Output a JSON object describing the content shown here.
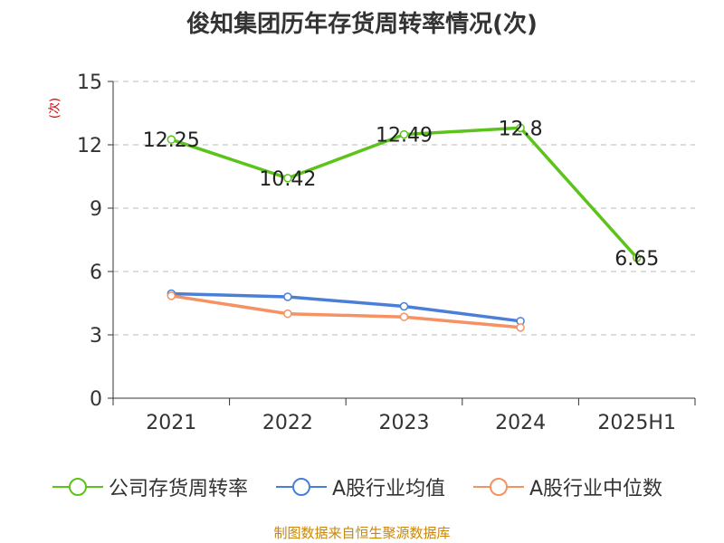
{
  "chart_data": {
    "type": "line",
    "title": "俊知集团历年存货周转率情况(次)",
    "ylabel": "(次)",
    "xlabel": "",
    "categories": [
      "2021",
      "2022",
      "2023",
      "2024",
      "2025H1"
    ],
    "ylim": [
      0,
      15
    ],
    "yticks": [
      0,
      3,
      6,
      9,
      12,
      15
    ],
    "grid": true,
    "legend_position": "bottom",
    "series": [
      {
        "name": "公司存货周转率",
        "color": "#5bc319",
        "values": [
          12.25,
          10.42,
          12.49,
          12.8,
          6.65
        ],
        "labels": [
          "12.25",
          "10.42",
          "12.49",
          "12.8",
          "6.65"
        ]
      },
      {
        "name": "A股行业均值",
        "color": "#4a7fd8",
        "values": [
          4.95,
          4.8,
          4.35,
          3.65,
          null
        ]
      },
      {
        "name": "A股行业中位数",
        "color": "#f59162",
        "values": [
          4.85,
          4.0,
          3.85,
          3.35,
          null
        ]
      }
    ]
  },
  "source_text": "制图数据来自恒生聚源数据库"
}
